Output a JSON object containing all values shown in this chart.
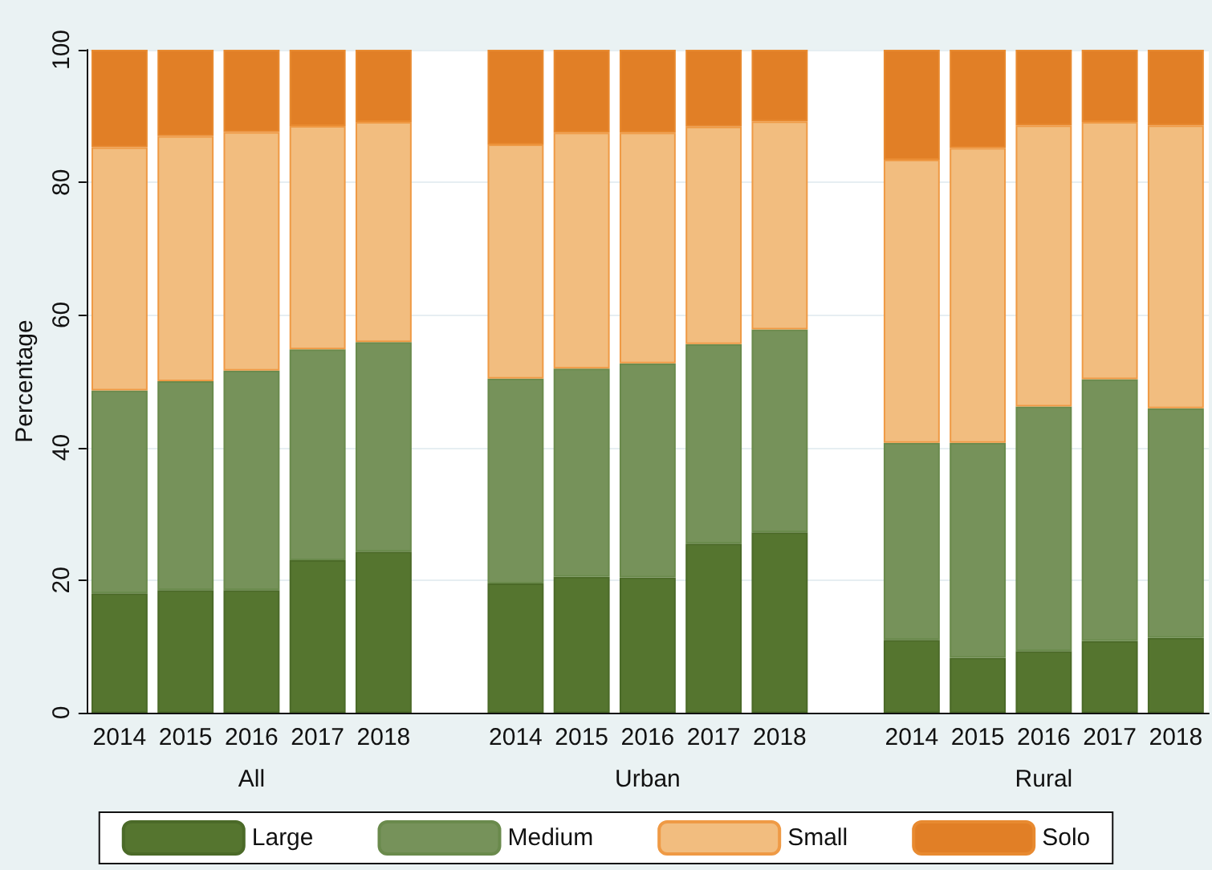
{
  "chart_data": {
    "type": "bar",
    "stacked": true,
    "ylabel": "Percentage",
    "categories": [
      "2014",
      "2015",
      "2016",
      "2017",
      "2018",
      null,
      "2014",
      "2015",
      "2016",
      "2017",
      "2018",
      null,
      "2014",
      "2015",
      "2016",
      "2017",
      "2018"
    ],
    "annotations": [
      "All",
      "Urban",
      "Rural"
    ],
    "ylim": [
      0,
      100
    ],
    "yticks": [
      0,
      20,
      40,
      60,
      80,
      100
    ],
    "grid": "y",
    "legend": "bottom",
    "series": [
      {
        "name": "Large",
        "color": "#55752f",
        "values": [
          18,
          18.5,
          18.5,
          23,
          24.3,
          null,
          19.5,
          20.5,
          20.4,
          25.5,
          27.2,
          null,
          11,
          8.3,
          9.3,
          10.8,
          11.3
        ]
      },
      {
        "name": "Medium",
        "color": "#76925a",
        "values": [
          30.6,
          31.5,
          33.1,
          31.8,
          31.6,
          null,
          30.9,
          31.4,
          32.3,
          30.1,
          30.6,
          null,
          29.7,
          32.4,
          36.9,
          39.5,
          34.6
        ]
      },
      {
        "name": "Small",
        "color": "#f2bd7f",
        "values": [
          36.7,
          37,
          36,
          33.7,
          33.2,
          null,
          35.3,
          35.6,
          34.8,
          32.8,
          31.4,
          null,
          42.7,
          44.5,
          42.4,
          38.8,
          42.7
        ]
      },
      {
        "name": "Solo",
        "color": "#e17f26",
        "values": [
          14.7,
          13,
          12.4,
          11.5,
          10.9,
          null,
          14.3,
          12.5,
          12.5,
          11.6,
          10.8,
          null,
          16.6,
          14.8,
          11.4,
          10.9,
          11.4
        ]
      }
    ]
  }
}
